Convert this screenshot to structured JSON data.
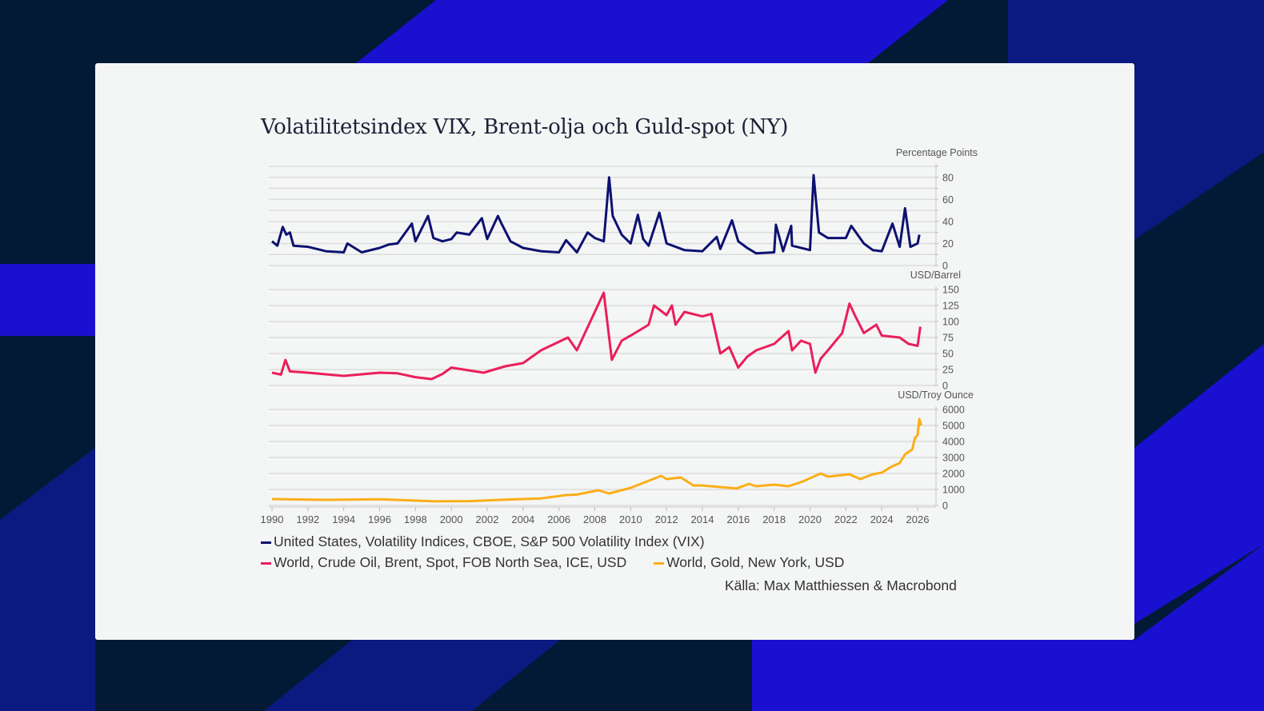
{
  "title": "Volatilitetsindex VIX, Brent-olja och Guld-spot (NY)",
  "colors": {
    "vix": "#0d1170",
    "brent": "#ea1f5a",
    "gold": "#fbae17",
    "grid": "#dcdcdc",
    "axis_text": "#555555"
  },
  "chart_data": [
    {
      "type": "line",
      "unit": "Percentage Points",
      "series_name": "United States, Volatility Indices, CBOE, S&P 500 Volatility Index (VIX)",
      "ylim": [
        0,
        90
      ],
      "yticks": [
        0,
        20,
        40,
        60,
        80
      ],
      "grid_step": 10,
      "x": [
        1990,
        1990.3,
        1990.6,
        1990.8,
        1991,
        1991.2,
        1992,
        1993,
        1994,
        1994.2,
        1995,
        1996,
        1996.5,
        1997,
        1997.8,
        1998,
        1998.7,
        1999,
        1999.5,
        2000,
        2000.3,
        2001,
        2001.7,
        2002,
        2002.6,
        2002.8,
        2003.3,
        2004,
        2005,
        2006,
        2006.4,
        2007,
        2007.6,
        2008,
        2008.5,
        2008.8,
        2009,
        2009.5,
        2010,
        2010.4,
        2010.7,
        2011,
        2011.6,
        2012,
        2013,
        2014,
        2014.8,
        2015,
        2015.65,
        2016,
        2016.5,
        2017,
        2018,
        2018.1,
        2018.5,
        2018.95,
        2019,
        2020,
        2020.2,
        2020.5,
        2021,
        2022,
        2022.3,
        2023,
        2023.5,
        2024,
        2024.6,
        2025,
        2025.3,
        2025.6,
        2026,
        2026.1
      ],
      "y": [
        22,
        18,
        35,
        28,
        30,
        18,
        17,
        13,
        12,
        20,
        12,
        16,
        19,
        20,
        38,
        22,
        45,
        25,
        22,
        24,
        30,
        28,
        43,
        24,
        45,
        38,
        22,
        16,
        13,
        12,
        23,
        12,
        30,
        25,
        22,
        80,
        45,
        28,
        20,
        46,
        24,
        18,
        48,
        20,
        14,
        13,
        26,
        15,
        41,
        22,
        16,
        11,
        12,
        37,
        13,
        36,
        18,
        14,
        82,
        30,
        25,
        25,
        36,
        20,
        14,
        13,
        38,
        17,
        52,
        17,
        20,
        28
      ]
    },
    {
      "type": "line",
      "unit": "USD/Barrel",
      "series_name": "World, Crude Oil, Brent, Spot, FOB North Sea, ICE, USD",
      "ylim": [
        0,
        150
      ],
      "yticks": [
        0,
        25,
        50,
        75,
        100,
        125,
        150
      ],
      "grid_step": 25,
      "x": [
        1990,
        1990.5,
        1990.75,
        1991,
        1992,
        1994,
        1996,
        1997,
        1998,
        1998.9,
        1999.5,
        2000,
        2001.8,
        2003,
        2004,
        2005,
        2006.5,
        2007,
        2008.5,
        2008.95,
        2009.5,
        2010,
        2011,
        2011.3,
        2012,
        2012.3,
        2012.5,
        2013,
        2014,
        2014.5,
        2015,
        2015.5,
        2016,
        2016.5,
        2017,
        2018,
        2018.8,
        2019,
        2019.5,
        2020,
        2020.3,
        2020.6,
        2021,
        2021.8,
        2022.2,
        2022.5,
        2023,
        2023.7,
        2024,
        2025,
        2025.5,
        2026,
        2026.15
      ],
      "y": [
        20,
        17,
        40,
        22,
        20,
        15,
        20,
        19,
        13,
        10,
        18,
        28,
        20,
        30,
        35,
        55,
        75,
        55,
        145,
        40,
        70,
        78,
        95,
        125,
        110,
        125,
        95,
        115,
        108,
        112,
        50,
        60,
        28,
        45,
        55,
        65,
        85,
        55,
        70,
        65,
        20,
        42,
        55,
        82,
        128,
        110,
        82,
        95,
        78,
        75,
        65,
        62,
        92
      ]
    },
    {
      "type": "line",
      "unit": "USD/Troy Ounce",
      "series_name": "World, Gold, New York, USD",
      "ylim": [
        0,
        6000
      ],
      "yticks": [
        0,
        1000,
        2000,
        3000,
        4000,
        5000,
        6000
      ],
      "grid_step": 1000,
      "x": [
        1990,
        1993,
        1996,
        1999,
        2001,
        2003,
        2005,
        2006.4,
        2007,
        2008.2,
        2008.8,
        2010,
        2011.7,
        2012,
        2012.8,
        2013.5,
        2014,
        2015.9,
        2016.6,
        2017,
        2018,
        2018.8,
        2019.6,
        2020.6,
        2021,
        2022.2,
        2022.8,
        2023.5,
        2024,
        2024.5,
        2025,
        2025.3,
        2025.7,
        2025.85,
        2026,
        2026.1,
        2026.2
      ],
      "y": [
        400,
        350,
        390,
        260,
        270,
        360,
        440,
        650,
        680,
        950,
        750,
        1100,
        1850,
        1650,
        1750,
        1250,
        1250,
        1060,
        1350,
        1200,
        1300,
        1200,
        1500,
        2000,
        1800,
        1950,
        1650,
        1950,
        2050,
        2400,
        2650,
        3200,
        3500,
        4200,
        4400,
        5400,
        5000
      ]
    }
  ],
  "xaxis": {
    "ticks": [
      "1990",
      "1992",
      "1994",
      "1996",
      "1998",
      "2000",
      "2002",
      "2004",
      "2006",
      "2008",
      "2010",
      "2012",
      "2014",
      "2016",
      "2018",
      "2020",
      "2022",
      "2024",
      "2026"
    ],
    "xlim": [
      1990,
      2027
    ]
  },
  "legend": [
    {
      "label": "United States, Volatility Indices, CBOE, S&P 500 Volatility Index (VIX)"
    },
    {
      "label": "World, Crude Oil, Brent, Spot, FOB North Sea, ICE, USD"
    },
    {
      "label": "World, Gold, New York, USD"
    }
  ],
  "source": "Källa: Max Matthiessen & Macrobond"
}
